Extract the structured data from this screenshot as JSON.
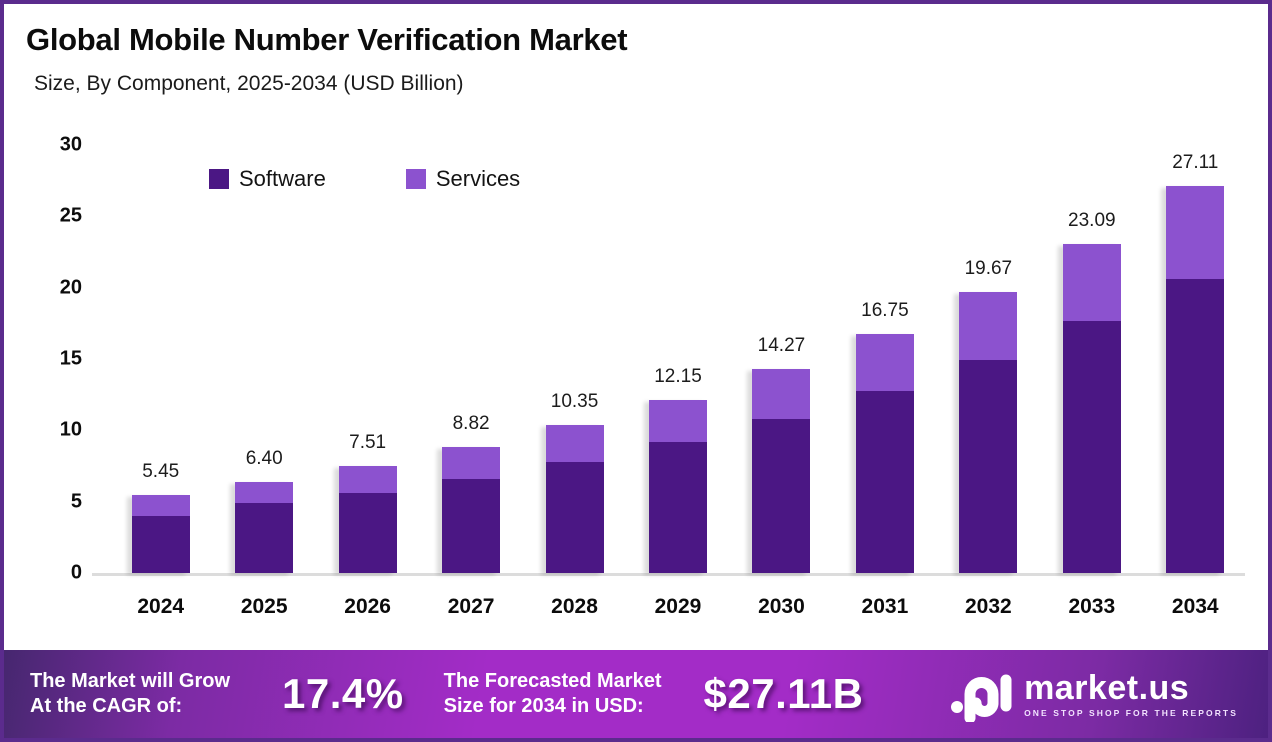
{
  "header": {
    "title": "Global Mobile Number Verification Market",
    "subtitle": "Size, By Component, 2025-2034 (USD Billion)"
  },
  "chart_data": {
    "type": "bar",
    "stacked": true,
    "title": "Global Mobile Number Verification Market Size, By Component, 2025-2034 (USD Billion)",
    "categories": [
      "2024",
      "2025",
      "2026",
      "2027",
      "2028",
      "2029",
      "2030",
      "2031",
      "2032",
      "2033",
      "2034"
    ],
    "series": [
      {
        "name": "Software",
        "color": "#4B1784",
        "values": [
          4.0,
          4.9,
          5.6,
          6.62,
          7.8,
          9.2,
          10.8,
          12.73,
          14.95,
          17.65,
          20.6
        ]
      },
      {
        "name": "Services",
        "color": "#8C52CF",
        "values": [
          1.45,
          1.5,
          1.91,
          2.2,
          2.55,
          2.95,
          3.47,
          4.02,
          4.72,
          5.44,
          6.51
        ]
      }
    ],
    "totals": [
      5.45,
      6.4,
      7.51,
      8.82,
      10.35,
      12.15,
      14.27,
      16.75,
      19.67,
      23.09,
      27.11
    ],
    "total_labels": [
      "5.45",
      "6.40",
      "7.51",
      "8.82",
      "10.35",
      "12.15",
      "14.27",
      "16.75",
      "19.67",
      "23.09",
      "27.11"
    ],
    "xlabel": "",
    "ylabel": "",
    "ylim": [
      0,
      30
    ],
    "yticks": [
      "30",
      "25",
      "20",
      "15",
      "10",
      "5",
      "0"
    ],
    "grid": false,
    "legend_position": "top",
    "legend": [
      "Software",
      "Services"
    ]
  },
  "footer": {
    "cagr_label_line1": "The Market will Grow",
    "cagr_label_line2": "At the CAGR of:",
    "cagr_value": "17.4%",
    "forecast_label_line1": "The Forecasted Market",
    "forecast_label_line2": "Size for 2034 in USD:",
    "forecast_value": "$27.11B",
    "brand": {
      "name": "market.us",
      "tagline": "ONE STOP SHOP FOR THE REPORTS"
    }
  },
  "colors": {
    "software": "#4B1784",
    "services": "#8C52CF",
    "frame_border": "#5B2B8D",
    "baseline": "#dcdcdc",
    "footer_gradient_edge": "#46276f",
    "footer_gradient_center": "#a32cc7"
  }
}
